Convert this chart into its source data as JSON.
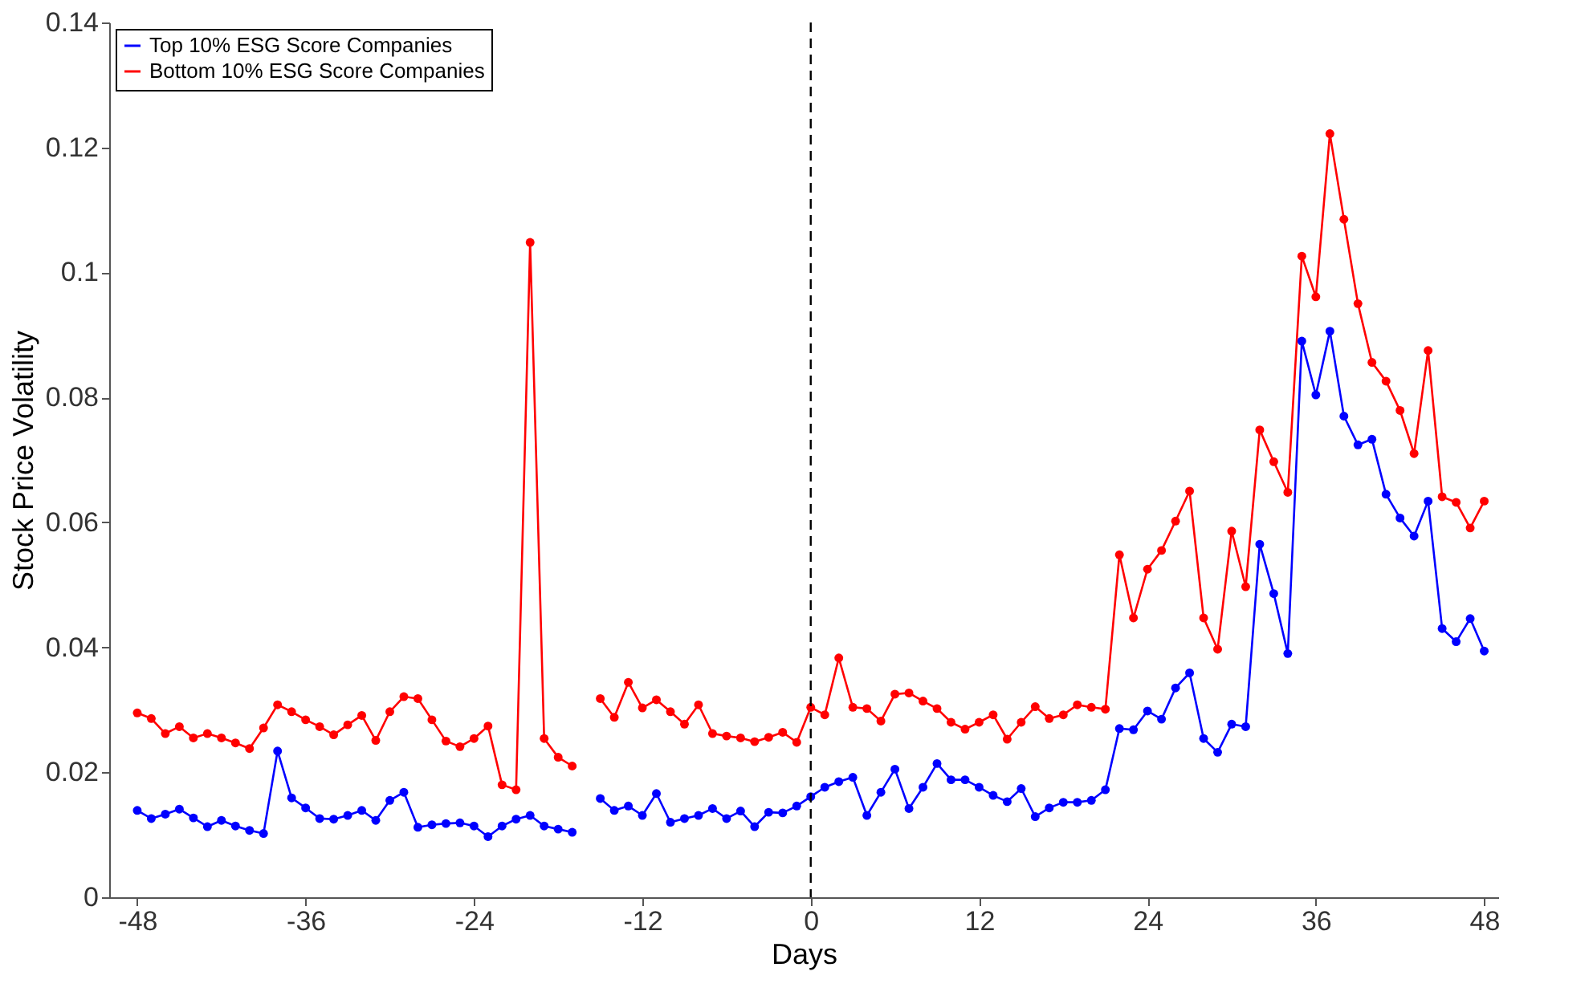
{
  "chart_data": {
    "type": "line",
    "xlabel": "Days",
    "ylabel": "Stock Price Volatility",
    "x": [
      -48,
      -47,
      -46,
      -45,
      -44,
      -43,
      -42,
      -41,
      -40,
      -39,
      -38,
      -37,
      -36,
      -35,
      -34,
      -33,
      -32,
      -31,
      -30,
      -29,
      -28,
      -27,
      -26,
      -25,
      -24,
      -23,
      -22,
      -21,
      -20,
      -19,
      -18,
      -17,
      -16,
      -15,
      -14,
      -13,
      -12,
      -11,
      -10,
      -9,
      -8,
      -7,
      -6,
      -5,
      -4,
      -3,
      -2,
      -1,
      0,
      1,
      2,
      3,
      4,
      5,
      6,
      7,
      8,
      9,
      10,
      11,
      12,
      13,
      14,
      15,
      16,
      17,
      18,
      19,
      20,
      21,
      22,
      23,
      24,
      25,
      26,
      27,
      28,
      29,
      30,
      31,
      32,
      33,
      34,
      35,
      36,
      37,
      38,
      39,
      40,
      41,
      42,
      43,
      44,
      45,
      46,
      47,
      48
    ],
    "series": [
      {
        "name": "Top 10% ESG Score Companies",
        "color": "#0000ff",
        "values": [
          0.0139,
          0.0126,
          0.0133,
          0.0141,
          0.0127,
          0.0113,
          0.0123,
          0.0114,
          0.0107,
          0.0102,
          0.0234,
          0.0159,
          0.0143,
          0.0126,
          0.0125,
          0.0131,
          0.0139,
          0.0123,
          0.0155,
          0.0168,
          0.0112,
          0.0116,
          0.0118,
          0.0119,
          0.0114,
          0.0097,
          0.0114,
          0.0125,
          0.0131,
          0.0114,
          0.0109,
          0.0104,
          null,
          0.0158,
          0.0139,
          0.0146,
          0.0131,
          0.0166,
          0.012,
          0.0126,
          0.0131,
          0.0142,
          0.0126,
          0.0138,
          0.0113,
          0.0136,
          0.0135,
          0.0146,
          0.0161,
          0.0176,
          0.0185,
          0.0192,
          0.0131,
          0.0168,
          0.0205,
          0.0142,
          0.0176,
          0.0214,
          0.0188,
          0.0188,
          0.0176,
          0.0163,
          0.0153,
          0.0174,
          0.0129,
          0.0143,
          0.0152,
          0.0152,
          0.0155,
          0.0172,
          0.027,
          0.0268,
          0.0298,
          0.0285,
          0.0335,
          0.0359,
          0.0254,
          0.0232,
          0.0277,
          0.0273,
          0.0565,
          0.0486,
          0.039,
          0.089,
          0.0804,
          0.0906,
          0.077,
          0.0724,
          0.0733,
          0.0645,
          0.0607,
          0.0578,
          0.0634,
          0.043,
          0.0409,
          0.0446,
          0.0394
        ]
      },
      {
        "name": "Bottom 10% ESG Score Companies",
        "color": "#ff0000",
        "values": [
          0.0295,
          0.0286,
          0.0262,
          0.0273,
          0.0255,
          0.0262,
          0.0255,
          0.0247,
          0.0238,
          0.0271,
          0.0308,
          0.0297,
          0.0284,
          0.0273,
          0.026,
          0.0276,
          0.0291,
          0.0251,
          0.0297,
          0.0321,
          0.0318,
          0.0284,
          0.025,
          0.0241,
          0.0254,
          0.0274,
          0.018,
          0.0172,
          0.1048,
          0.0254,
          0.0224,
          0.021,
          null,
          0.0318,
          0.0288,
          0.0344,
          0.0303,
          0.0316,
          0.0297,
          0.0277,
          0.0308,
          0.0262,
          0.0258,
          0.0255,
          0.0249,
          0.0256,
          0.0264,
          0.0248,
          0.0304,
          0.0292,
          0.0383,
          0.0304,
          0.0302,
          0.0282,
          0.0325,
          0.0327,
          0.0314,
          0.0302,
          0.028,
          0.0269,
          0.028,
          0.0292,
          0.0253,
          0.028,
          0.0305,
          0.0286,
          0.0292,
          0.0308,
          0.0304,
          0.0301,
          0.0548,
          0.0447,
          0.0525,
          0.0555,
          0.0602,
          0.065,
          0.0447,
          0.0397,
          0.0586,
          0.0497,
          0.0748,
          0.0697,
          0.0648,
          0.1026,
          0.0961,
          0.1222,
          0.1085,
          0.095,
          0.0856,
          0.0826,
          0.0779,
          0.071,
          0.0875,
          0.0641,
          0.0632,
          0.0591,
          0.0634
        ]
      }
    ],
    "xlim": [
      -50,
      49
    ],
    "xticks": [
      -48,
      -36,
      -24,
      -12,
      0,
      12,
      24,
      36,
      48
    ],
    "ylim": [
      0,
      0.14
    ],
    "yticks": [
      0,
      0.02,
      0.04,
      0.06,
      0.08,
      0.1,
      0.12,
      0.14
    ],
    "ref_lines": [
      {
        "axis": "x",
        "value": 0,
        "color": "#000000",
        "line_style": "dashed"
      }
    ],
    "marker": "circle",
    "line_style": "solid",
    "grid": false,
    "legend": "top left"
  }
}
